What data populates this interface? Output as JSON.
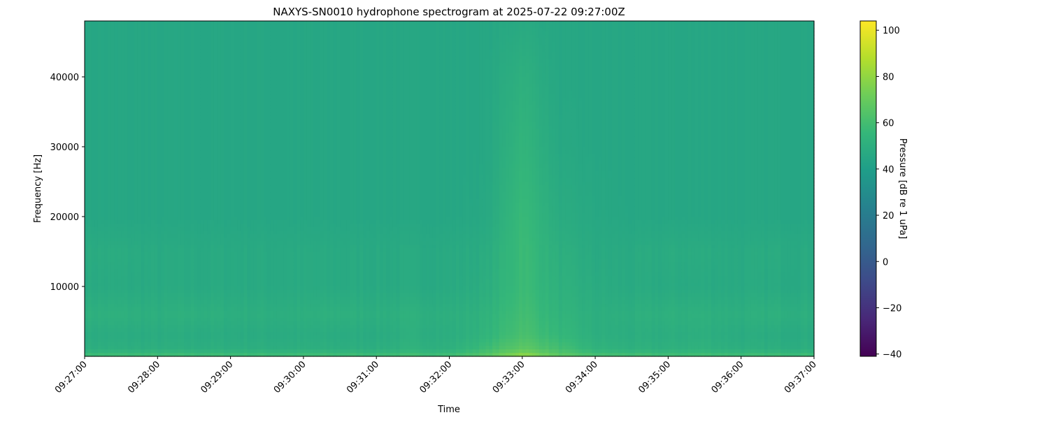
{
  "chart_data": {
    "type": "heatmap",
    "title": "NAXYS-SN0010 hydrophone spectrogram at 2025-07-22 09:27:00Z",
    "xlabel": "Time",
    "ylabel": "Frequency [Hz]",
    "colorbar_label": "Pressure [dB re 1 uPa]",
    "colormap": "viridis",
    "xlim": [
      "09:27:00",
      "09:37:00"
    ],
    "ylim": [
      0,
      48000
    ],
    "clim": [
      -41,
      104
    ],
    "x_ticks": [
      "09:27:00",
      "09:28:00",
      "09:29:00",
      "09:30:00",
      "09:31:00",
      "09:32:00",
      "09:33:00",
      "09:34:00",
      "09:35:00",
      "09:36:00",
      "09:37:00"
    ],
    "y_ticks": [
      10000,
      20000,
      30000,
      40000
    ],
    "y_tick_labels": [
      "10000",
      "20000",
      "30000",
      "40000"
    ],
    "colorbar_ticks": [
      100,
      80,
      60,
      40,
      20,
      0,
      -20,
      -40
    ],
    "colorbar_tick_labels": [
      "100",
      "80",
      "60",
      "40",
      "20",
      "0",
      "−20",
      "−40"
    ],
    "grid": false,
    "times": [
      "09:27:00",
      "09:27:30",
      "09:28:00",
      "09:28:30",
      "09:29:00",
      "09:29:30",
      "09:30:00",
      "09:30:30",
      "09:31:00",
      "09:31:30",
      "09:32:00",
      "09:32:30",
      "09:33:00",
      "09:33:30",
      "09:34:00",
      "09:34:30",
      "09:35:00",
      "09:35:30",
      "09:36:00",
      "09:36:30",
      "09:37:00"
    ],
    "frequencies": [
      0,
      1000,
      3000,
      6000,
      10000,
      15000,
      20000,
      30000,
      40000,
      48000
    ],
    "values_db": [
      [
        60,
        50,
        48,
        51,
        47,
        48,
        45,
        45,
        45,
        45
      ],
      [
        60,
        50,
        48,
        51,
        47,
        48,
        45,
        45,
        45,
        45
      ],
      [
        60,
        50,
        48,
        50,
        47,
        47,
        45,
        45,
        45,
        45
      ],
      [
        60,
        50,
        48,
        51,
        47,
        47,
        45,
        45,
        45,
        45
      ],
      [
        60,
        50,
        48,
        50,
        47,
        47,
        45,
        45,
        45,
        45
      ],
      [
        60,
        50,
        48,
        50,
        47,
        47,
        45,
        45,
        45,
        45
      ],
      [
        60,
        50,
        48,
        50,
        47,
        47,
        45,
        45,
        45,
        45
      ],
      [
        60,
        50,
        48,
        51,
        47,
        47,
        45,
        45,
        45,
        45
      ],
      [
        60,
        50,
        48,
        50,
        47,
        47,
        45,
        45,
        45,
        45
      ],
      [
        61,
        52,
        50,
        51,
        47,
        47,
        45,
        45,
        45,
        45
      ],
      [
        60,
        51,
        49,
        50,
        47,
        47,
        45,
        45,
        45,
        45
      ],
      [
        66,
        58,
        53,
        52,
        49,
        48,
        46,
        45,
        45,
        45
      ],
      [
        82,
        68,
        62,
        60,
        58,
        58,
        57,
        54,
        51,
        47
      ],
      [
        68,
        60,
        55,
        53,
        51,
        50,
        48,
        46,
        45,
        45
      ],
      [
        62,
        53,
        50,
        50,
        48,
        47,
        46,
        45,
        45,
        45
      ],
      [
        61,
        51,
        49,
        50,
        47,
        47,
        45,
        45,
        45,
        45
      ],
      [
        60,
        51,
        49,
        51,
        47,
        48,
        45,
        45,
        45,
        45
      ],
      [
        61,
        52,
        50,
        51,
        47,
        48,
        45,
        45,
        45,
        45
      ],
      [
        60,
        50,
        48,
        50,
        47,
        47,
        45,
        45,
        45,
        45
      ],
      [
        60,
        50,
        48,
        51,
        47,
        48,
        45,
        45,
        45,
        45
      ],
      [
        60,
        50,
        48,
        50,
        47,
        47,
        45,
        45,
        45,
        45
      ]
    ]
  }
}
